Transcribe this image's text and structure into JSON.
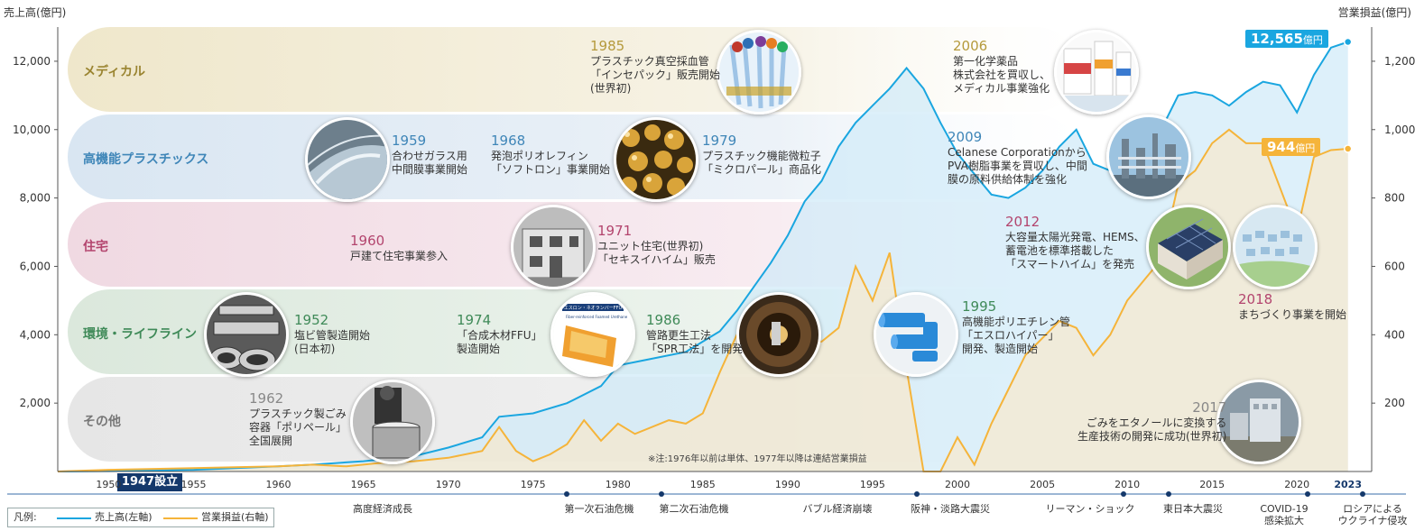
{
  "axes": {
    "left_title": "売上高(億円)",
    "right_title": "営業損益(億円)",
    "left_ticks": [
      "2,000",
      "4,000",
      "6,000",
      "8,000",
      "10,000",
      "12,000"
    ],
    "right_ticks": [
      "200",
      "400",
      "600",
      "800",
      "1,000",
      "1,200"
    ]
  },
  "bands": [
    {
      "label": "メディカル",
      "color": "#9a8430"
    },
    {
      "label": "高機能プラスチックス",
      "color": "#3f86b8"
    },
    {
      "label": "住宅",
      "color": "#b3456e"
    },
    {
      "label": "環境・ライフライン",
      "color": "#3f8a58"
    },
    {
      "label": "その他",
      "color": "#777777"
    }
  ],
  "events": [
    {
      "year": "1985",
      "color": "#b59a3c",
      "lines": [
        "プラスチック真空採血管",
        "「インセパック」販売開始",
        "(世界初)"
      ]
    },
    {
      "year": "2006",
      "color": "#b59a3c",
      "lines": [
        "第一化学薬品",
        "株式会社を買収し、",
        "メディカル事業強化"
      ]
    },
    {
      "year": "1959",
      "color": "#3f86b8",
      "lines": [
        "合わせガラス用",
        "中間膜事業開始"
      ]
    },
    {
      "year": "1968",
      "color": "#3f86b8",
      "lines": [
        "発泡ポリオレフィン",
        "「ソフトロン」事業開始"
      ]
    },
    {
      "year": "1979",
      "color": "#3f86b8",
      "lines": [
        "プラスチック機能微粒子",
        "「ミクロパール」商品化"
      ]
    },
    {
      "year": "2009",
      "color": "#3f86b8",
      "lines": [
        "Celanese Corporationから",
        "PVA樹脂事業を買収し、中間",
        "膜の原料供給体制を強化"
      ]
    },
    {
      "year": "1960",
      "color": "#b3456e",
      "lines": [
        "戸建て住宅事業参入"
      ]
    },
    {
      "year": "1971",
      "color": "#b3456e",
      "lines": [
        "ユニット住宅(世界初)",
        "「セキスイハイム」販売"
      ]
    },
    {
      "year": "2012",
      "color": "#b3456e",
      "lines": [
        "大容量太陽光発電、HEMS、",
        "蓄電池を標準搭載した",
        "「スマートハイム」を発売"
      ]
    },
    {
      "year": "2018",
      "color": "#b3456e",
      "lines": [
        "まちづくり事業を開始"
      ]
    },
    {
      "year": "1952",
      "color": "#3f8a58",
      "lines": [
        "塩ビ管製造開始",
        "(日本初)"
      ]
    },
    {
      "year": "1974",
      "color": "#3f8a58",
      "lines": [
        "「合成木材FFU」",
        "製造開始"
      ]
    },
    {
      "year": "1986",
      "color": "#3f8a58",
      "lines": [
        "管路更生工法",
        "「SPR工法」を開発"
      ]
    },
    {
      "year": "1995",
      "color": "#3f8a58",
      "lines": [
        "高機能ポリエチレン管",
        "「エスロハイパー」",
        "開発、製造開始"
      ]
    },
    {
      "year": "1962",
      "color": "#888888",
      "lines": [
        "プラスチック製ごみ",
        "容器「ポリペール」",
        "全国展開"
      ]
    },
    {
      "year": "2017",
      "color": "#888888",
      "lines": [
        "ごみをエタノールに変換する",
        "生産技術の開発に成功(世界初)"
      ]
    }
  ],
  "photos": [
    {
      "icon": "blood-tube-photo-icon",
      "color": "#5aa7d8"
    },
    {
      "icon": "medicine-bottles-photo-icon",
      "color": "#d85a5a"
    },
    {
      "icon": "glass-film-photo-icon",
      "color": "#8aa4b8"
    },
    {
      "icon": "microparticle-photo-icon",
      "color": "#c89a2a"
    },
    {
      "icon": "chemical-plant-photo-icon",
      "color": "#4a7aa8"
    },
    {
      "icon": "unit-house-photo-icon",
      "color": "#8a8a8a"
    },
    {
      "icon": "solar-house-photo-icon",
      "color": "#3a5a8a"
    },
    {
      "icon": "town-aerial-photo-icon",
      "color": "#8ab0d0"
    },
    {
      "icon": "pvc-pipe-photo-icon",
      "color": "#9a9a9a"
    },
    {
      "icon": "ffu-brochure-photo-icon",
      "color": "#e8a040"
    },
    {
      "icon": "pipe-rehab-photo-icon",
      "color": "#a07040"
    },
    {
      "icon": "poly-pipe-photo-icon",
      "color": "#2a8ad8"
    },
    {
      "icon": "garbage-bin-photo-icon",
      "color": "#777777"
    },
    {
      "icon": "ethanol-plant-photo-icon",
      "color": "#9aa0a8"
    }
  ],
  "photo_text": {
    "brochure_title": "エスロン・ネオランバーFFU",
    "brochure_sub": "Fiber-reinforced Foamed Urethane"
  },
  "note": "※注:1976年以前は単体、1977年以降は連結営業損益",
  "callouts": {
    "sales_value": "12,565",
    "sales_unit": "億円",
    "profit_value": "944",
    "profit_unit": "億円"
  },
  "founded": "1947設立",
  "x_ticks": [
    "1950",
    "1955",
    "1960",
    "1965",
    "1970",
    "1975",
    "1980",
    "1985",
    "1990",
    "1995",
    "2000",
    "2005",
    "2010",
    "2015",
    "2020",
    "2023"
  ],
  "historical_events": [
    {
      "lines": [
        "高度経済成長"
      ]
    },
    {
      "lines": [
        "第一次石油危機"
      ]
    },
    {
      "lines": [
        "第二次石油危機"
      ]
    },
    {
      "lines": [
        "バブル経済崩壊"
      ]
    },
    {
      "lines": [
        "阪神・淡路大震災"
      ]
    },
    {
      "lines": [
        "リーマン・ショック"
      ]
    },
    {
      "lines": [
        "東日本大震災"
      ]
    },
    {
      "lines": [
        "COVID-19",
        "感染拡大"
      ]
    },
    {
      "lines": [
        "ロシアによる",
        "ウクライナ侵攻"
      ]
    }
  ],
  "legend": {
    "prefix": "凡例:",
    "sales": "売上高(左軸)",
    "profit": "営業損益(右軸)"
  },
  "colors": {
    "sales_line": "#1aa6e0",
    "profit_line": "#f5b43a",
    "sales_fill": "#cfe9f8",
    "profit_fill": "#fde8c4",
    "axis": "#14386b"
  },
  "chart_data": {
    "type": "line",
    "left_axis": {
      "title": "売上高(億円)",
      "range": [
        0,
        13000
      ],
      "ticks": [
        2000,
        4000,
        6000,
        8000,
        10000,
        12000
      ]
    },
    "right_axis": {
      "title": "営業損益(億円)",
      "range": [
        0,
        1300
      ],
      "ticks": [
        200,
        400,
        600,
        800,
        1000,
        1200
      ]
    },
    "x_range": [
      1947,
      2024
    ],
    "grid": false,
    "legend_position": "bottom-left",
    "series": [
      {
        "name": "売上高(左軸)",
        "axis": "left",
        "points": [
          [
            1947,
            0
          ],
          [
            1950,
            10
          ],
          [
            1955,
            50
          ],
          [
            1960,
            150
          ],
          [
            1962,
            200
          ],
          [
            1965,
            300
          ],
          [
            1968,
            450
          ],
          [
            1970,
            700
          ],
          [
            1972,
            1000
          ],
          [
            1973,
            1600
          ],
          [
            1975,
            1700
          ],
          [
            1977,
            2000
          ],
          [
            1979,
            2500
          ],
          [
            1980,
            3100
          ],
          [
            1982,
            3300
          ],
          [
            1984,
            3500
          ],
          [
            1985,
            3800
          ],
          [
            1986,
            4100
          ],
          [
            1987,
            4700
          ],
          [
            1988,
            5400
          ],
          [
            1989,
            6100
          ],
          [
            1990,
            6900
          ],
          [
            1991,
            7900
          ],
          [
            1992,
            8500
          ],
          [
            1993,
            9500
          ],
          [
            1994,
            10200
          ],
          [
            1995,
            10700
          ],
          [
            1996,
            11200
          ],
          [
            1997,
            11800
          ],
          [
            1998,
            11200
          ],
          [
            1999,
            10200
          ],
          [
            2000,
            9300
          ],
          [
            2001,
            8700
          ],
          [
            2002,
            8100
          ],
          [
            2003,
            8000
          ],
          [
            2004,
            8300
          ],
          [
            2005,
            8800
          ],
          [
            2006,
            9500
          ],
          [
            2007,
            10000
          ],
          [
            2008,
            9000
          ],
          [
            2009,
            8800
          ],
          [
            2010,
            9000
          ],
          [
            2011,
            9700
          ],
          [
            2012,
            10000
          ],
          [
            2013,
            11000
          ],
          [
            2014,
            11100
          ],
          [
            2015,
            11000
          ],
          [
            2016,
            10700
          ],
          [
            2017,
            11100
          ],
          [
            2018,
            11400
          ],
          [
            2019,
            11300
          ],
          [
            2020,
            10500
          ],
          [
            2021,
            11600
          ],
          [
            2022,
            12400
          ],
          [
            2023,
            12565
          ]
        ]
      },
      {
        "name": "営業損益(右軸)",
        "axis": "right",
        "points": [
          [
            1947,
            0
          ],
          [
            1950,
            5
          ],
          [
            1955,
            10
          ],
          [
            1960,
            15
          ],
          [
            1962,
            20
          ],
          [
            1964,
            15
          ],
          [
            1966,
            25
          ],
          [
            1968,
            30
          ],
          [
            1970,
            40
          ],
          [
            1972,
            60
          ],
          [
            1973,
            130
          ],
          [
            1974,
            60
          ],
          [
            1975,
            30
          ],
          [
            1976,
            50
          ],
          [
            1977,
            80
          ],
          [
            1978,
            150
          ],
          [
            1979,
            90
          ],
          [
            1980,
            140
          ],
          [
            1981,
            110
          ],
          [
            1983,
            150
          ],
          [
            1984,
            140
          ],
          [
            1985,
            170
          ],
          [
            1986,
            290
          ],
          [
            1987,
            400
          ],
          [
            1988,
            480
          ],
          [
            1989,
            490
          ],
          [
            1990,
            430
          ],
          [
            1991,
            380
          ],
          [
            1992,
            380
          ],
          [
            1993,
            420
          ],
          [
            1994,
            600
          ],
          [
            1995,
            500
          ],
          [
            1996,
            640
          ],
          [
            1997,
            300
          ],
          [
            1998,
            -200
          ],
          [
            1999,
            -300
          ],
          [
            2000,
            100
          ],
          [
            2001,
            20
          ],
          [
            2002,
            140
          ],
          [
            2003,
            240
          ],
          [
            2004,
            340
          ],
          [
            2005,
            390
          ],
          [
            2006,
            440
          ],
          [
            2007,
            420
          ],
          [
            2008,
            340
          ],
          [
            2009,
            400
          ],
          [
            2010,
            500
          ],
          [
            2011,
            560
          ],
          [
            2012,
            620
          ],
          [
            2013,
            840
          ],
          [
            2014,
            880
          ],
          [
            2015,
            960
          ],
          [
            2016,
            1000
          ],
          [
            2017,
            960
          ],
          [
            2018,
            960
          ],
          [
            2019,
            830
          ],
          [
            2020,
            700
          ],
          [
            2021,
            920
          ],
          [
            2022,
            940
          ],
          [
            2023,
            944
          ]
        ]
      }
    ]
  }
}
